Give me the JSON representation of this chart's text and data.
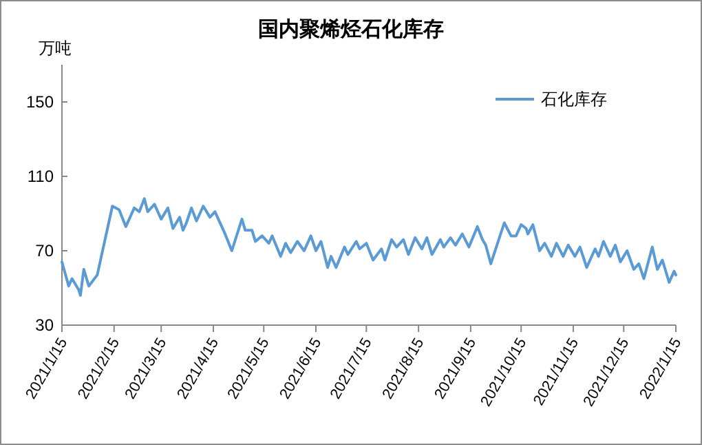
{
  "chart_data": {
    "type": "line",
    "title": "国内聚烯烃石化库存",
    "ylabel": "万吨",
    "legend": "top right",
    "grid": false,
    "marker": "none",
    "line_style": "solid",
    "xlim": [
      "2021-01-15",
      "2022-01-15"
    ],
    "ylim": [
      30,
      170
    ],
    "yticks": [
      30,
      70,
      110,
      150
    ],
    "xticks": [
      {
        "value": "2021-01-15",
        "label": "2021/1/15"
      },
      {
        "value": "2021-02-15",
        "label": "2021/2/15"
      },
      {
        "value": "2021-03-15",
        "label": "2021/3/15"
      },
      {
        "value": "2021-04-15",
        "label": "2021/4/15"
      },
      {
        "value": "2021-05-15",
        "label": "2021/5/15"
      },
      {
        "value": "2021-06-15",
        "label": "2021/6/15"
      },
      {
        "value": "2021-07-15",
        "label": "2021/7/15"
      },
      {
        "value": "2021-08-15",
        "label": "2021/8/15"
      },
      {
        "value": "2021-09-15",
        "label": "2021/9/15"
      },
      {
        "value": "2021-10-15",
        "label": "2021/10/15"
      },
      {
        "value": "2021-11-15",
        "label": "2021/11/15"
      },
      {
        "value": "2021-12-15",
        "label": "2021/12/15"
      },
      {
        "value": "2022-01-15",
        "label": "2022/1/15"
      }
    ],
    "x": [
      "2021-01-15",
      "2021-01-19",
      "2021-01-21",
      "2021-01-25",
      "2021-01-26",
      "2021-01-28",
      "2021-01-31",
      "2021-02-05",
      "2021-02-14",
      "2021-02-18",
      "2021-02-22",
      "2021-02-27",
      "2021-03-02",
      "2021-03-05",
      "2021-03-07",
      "2021-03-11",
      "2021-03-15",
      "2021-03-19",
      "2021-03-22",
      "2021-03-26",
      "2021-03-28",
      "2021-03-30",
      "2021-04-02",
      "2021-04-05",
      "2021-04-09",
      "2021-04-13",
      "2021-04-16",
      "2021-04-22",
      "2021-04-26",
      "2021-05-02",
      "2021-05-04",
      "2021-05-08",
      "2021-05-10",
      "2021-05-14",
      "2021-05-18",
      "2021-05-20",
      "2021-05-25",
      "2021-05-28",
      "2021-05-31",
      "2021-06-04",
      "2021-06-08",
      "2021-06-12",
      "2021-06-15",
      "2021-06-18",
      "2021-06-22",
      "2021-06-24",
      "2021-06-27",
      "2021-07-02",
      "2021-07-04",
      "2021-07-09",
      "2021-07-11",
      "2021-07-15",
      "2021-07-19",
      "2021-07-24",
      "2021-07-26",
      "2021-07-30",
      "2021-08-02",
      "2021-08-06",
      "2021-08-09",
      "2021-08-13",
      "2021-08-17",
      "2021-08-20",
      "2021-08-23",
      "2021-08-28",
      "2021-08-30",
      "2021-09-03",
      "2021-09-06",
      "2021-09-10",
      "2021-09-14",
      "2021-09-19",
      "2021-09-22",
      "2021-09-24",
      "2021-09-27",
      "2021-10-05",
      "2021-10-09",
      "2021-10-12",
      "2021-10-15",
      "2021-10-18",
      "2021-10-19",
      "2021-10-22",
      "2021-10-26",
      "2021-10-29",
      "2021-11-02",
      "2021-11-05",
      "2021-11-09",
      "2021-11-12",
      "2021-11-16",
      "2021-11-19",
      "2021-11-23",
      "2021-11-28",
      "2021-11-30",
      "2021-12-03",
      "2021-12-07",
      "2021-12-10",
      "2021-12-13",
      "2021-12-17",
      "2021-12-21",
      "2021-12-24",
      "2021-12-27",
      "2022-01-01",
      "2022-01-04",
      "2022-01-07",
      "2022-01-11",
      "2022-01-14",
      "2022-01-15"
    ],
    "series": [
      {
        "name": "石化库存",
        "color": "#5b9bd5",
        "values": [
          64,
          51,
          55,
          49,
          46,
          60,
          51,
          57,
          94,
          92,
          83,
          93,
          91,
          98,
          91,
          95,
          87,
          93,
          82,
          88,
          81,
          85,
          93,
          86,
          94,
          88,
          91,
          79,
          70,
          87,
          81,
          81,
          75,
          78,
          74,
          78,
          67,
          74,
          69,
          75,
          70,
          78,
          70,
          75,
          61,
          67,
          61,
          72,
          68,
          75,
          71,
          74,
          65,
          71,
          65,
          76,
          72,
          76,
          68,
          77,
          71,
          77,
          68,
          76,
          72,
          77,
          73,
          79,
          72,
          83,
          76,
          73,
          63,
          85,
          78,
          78,
          84,
          82,
          79,
          84,
          70,
          74,
          67,
          74,
          67,
          73,
          67,
          72,
          61,
          71,
          67,
          75,
          67,
          73,
          64,
          70,
          60,
          63,
          55,
          72,
          60,
          65,
          53,
          59,
          57
        ]
      }
    ]
  }
}
